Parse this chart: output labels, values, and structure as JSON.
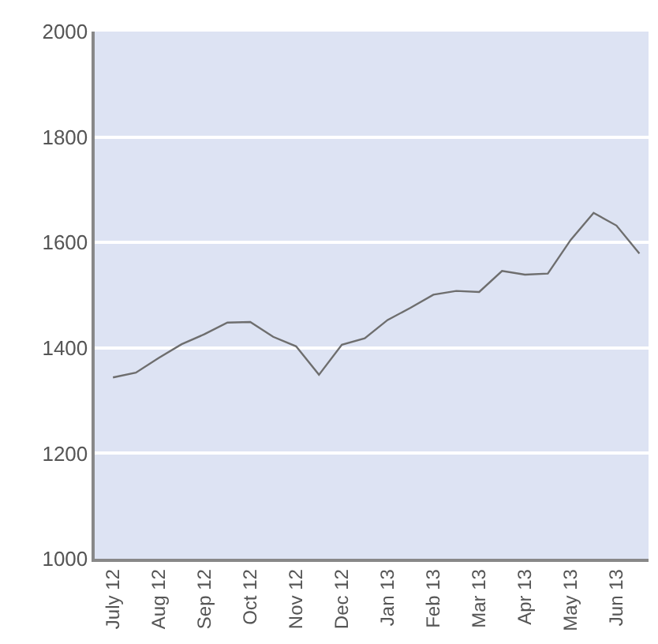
{
  "chart_data": {
    "type": "line",
    "categories": [
      "July 12",
      null,
      "Aug 12",
      null,
      "Sep 12",
      null,
      "Oct 12",
      null,
      "Nov 12",
      null,
      "Dec 12",
      null,
      "Jan 13",
      null,
      "Feb 13",
      null,
      "Mar 13",
      null,
      "Apr 13",
      null,
      "May 13",
      null,
      "Jun 13",
      null
    ],
    "series": [
      {
        "color": "#6e6e6e",
        "values": [
          1344,
          1353,
          1381,
          1407,
          1426,
          1448,
          1449,
          1421,
          1403,
          1349,
          1406,
          1418,
          1453,
          1476,
          1501,
          1508,
          1506,
          1546,
          1539,
          1541,
          1605,
          1656,
          1632,
          1579
        ]
      }
    ],
    "ylim": [
      1000,
      2000
    ],
    "yticks": [
      1000,
      1200,
      1400,
      1600,
      1800,
      2000
    ],
    "grid": "y",
    "legend": false,
    "marker": "none",
    "line_style": "solid"
  }
}
